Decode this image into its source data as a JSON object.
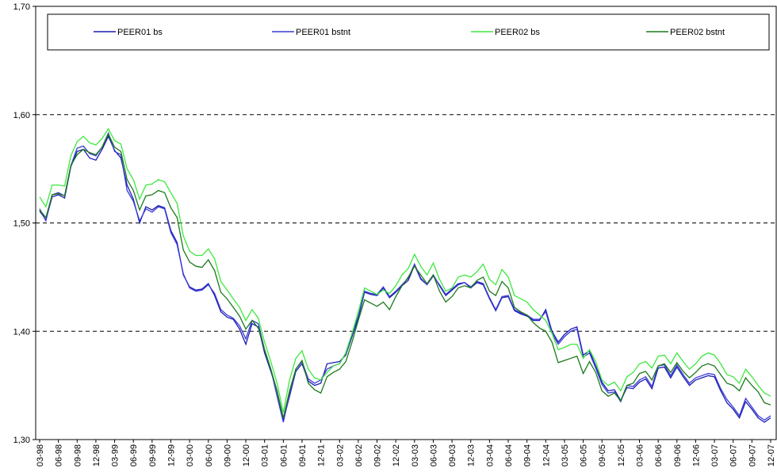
{
  "chart_data": {
    "type": "line",
    "categories": [
      "03-98",
      null,
      null,
      "06-98",
      null,
      null,
      "09-98",
      null,
      null,
      "12-98",
      null,
      null,
      "03-99",
      null,
      null,
      "06-99",
      null,
      null,
      "09-99",
      null,
      null,
      "12-99",
      null,
      null,
      "03-00",
      null,
      null,
      "06-00",
      null,
      null,
      "09-00",
      null,
      null,
      "12-00",
      null,
      null,
      "03-01",
      null,
      null,
      "06-01",
      null,
      null,
      "09-01",
      null,
      null,
      "12-01",
      null,
      null,
      "03-02",
      null,
      null,
      "06-02",
      null,
      null,
      "09-02",
      null,
      null,
      "12-02",
      null,
      null,
      "03-03",
      null,
      null,
      "06-03",
      null,
      null,
      "09-03",
      null,
      null,
      "12-03",
      null,
      null,
      "03-04",
      null,
      null,
      "06-04",
      null,
      null,
      "09-04",
      null,
      null,
      "12-04",
      null,
      null,
      "03-05",
      null,
      null,
      "06-05",
      null,
      null,
      "09-05",
      null,
      null,
      "12-05",
      null,
      null,
      "03-06",
      null,
      null,
      "06-06",
      null,
      null,
      "09-06",
      null,
      null,
      "12-06",
      null,
      null,
      "03-07",
      null,
      null,
      "06-07",
      null,
      null,
      "09-07",
      null,
      null,
      "12-07"
    ],
    "series": [
      {
        "name": "PEER01 bs",
        "color": "#1c1cb4",
        "values": [
          1.511,
          1.503,
          1.524,
          1.526,
          1.523,
          1.552,
          1.566,
          1.568,
          1.56,
          1.558,
          1.568,
          1.58,
          1.567,
          1.56,
          1.535,
          1.522,
          1.5,
          1.515,
          1.512,
          1.516,
          1.514,
          1.493,
          1.482,
          1.452,
          1.441,
          1.438,
          1.439,
          1.444,
          1.433,
          1.418,
          1.413,
          1.411,
          1.402,
          1.388,
          1.407,
          1.404,
          1.38,
          1.363,
          1.345,
          1.318,
          1.34,
          1.363,
          1.37,
          1.354,
          1.35,
          1.352,
          1.37,
          1.371,
          1.372,
          1.378,
          1.395,
          1.412,
          1.436,
          1.434,
          1.433,
          1.44,
          1.431,
          1.436,
          1.442,
          1.447,
          1.461,
          1.448,
          1.443,
          1.452,
          1.442,
          1.433,
          1.438,
          1.443,
          1.445,
          1.44,
          1.445,
          1.443,
          1.43,
          1.419,
          1.431,
          1.432,
          1.419,
          1.416,
          1.414,
          1.41,
          1.41,
          1.42,
          1.4,
          1.39,
          1.397,
          1.402,
          1.404,
          1.378,
          1.382,
          1.368,
          1.353,
          1.345,
          1.346,
          1.336,
          1.348,
          1.347,
          1.353,
          1.356,
          1.347,
          1.366,
          1.367,
          1.357,
          1.367,
          1.358,
          1.35,
          1.355,
          1.357,
          1.359,
          1.358,
          1.345,
          1.334,
          1.328,
          1.32,
          1.335,
          1.328,
          1.32,
          1.316,
          1.32
        ]
      },
      {
        "name": "PEER01 bstnt",
        "color": "#3a3ad6",
        "values": [
          1.513,
          1.502,
          1.526,
          1.528,
          1.525,
          1.553,
          1.569,
          1.571,
          1.564,
          1.562,
          1.57,
          1.583,
          1.566,
          1.563,
          1.53,
          1.52,
          1.502,
          1.513,
          1.51,
          1.515,
          1.513,
          1.491,
          1.48,
          1.453,
          1.44,
          1.437,
          1.438,
          1.443,
          1.435,
          1.42,
          1.415,
          1.412,
          1.405,
          1.393,
          1.41,
          1.407,
          1.383,
          1.365,
          1.34,
          1.316,
          1.342,
          1.365,
          1.372,
          1.356,
          1.352,
          1.355,
          1.365,
          1.368,
          1.37,
          1.38,
          1.398,
          1.414,
          1.437,
          1.435,
          1.434,
          1.441,
          1.432,
          1.437,
          1.443,
          1.449,
          1.462,
          1.449,
          1.443,
          1.451,
          1.443,
          1.434,
          1.439,
          1.444,
          1.445,
          1.441,
          1.446,
          1.444,
          1.431,
          1.42,
          1.432,
          1.433,
          1.42,
          1.417,
          1.415,
          1.411,
          1.411,
          1.418,
          1.398,
          1.388,
          1.395,
          1.4,
          1.402,
          1.376,
          1.38,
          1.366,
          1.351,
          1.343,
          1.344,
          1.335,
          1.35,
          1.349,
          1.355,
          1.358,
          1.349,
          1.368,
          1.369,
          1.359,
          1.369,
          1.36,
          1.352,
          1.357,
          1.359,
          1.361,
          1.36,
          1.347,
          1.337,
          1.33,
          1.322,
          1.338,
          1.33,
          1.322,
          1.318,
          1.322
        ]
      },
      {
        "name": "PEER02 bs",
        "color": "#3ee83e",
        "values": [
          1.524,
          1.515,
          1.535,
          1.535,
          1.534,
          1.562,
          1.575,
          1.58,
          1.574,
          1.572,
          1.578,
          1.587,
          1.576,
          1.573,
          1.55,
          1.54,
          1.522,
          1.535,
          1.536,
          1.54,
          1.538,
          1.528,
          1.518,
          1.488,
          1.474,
          1.47,
          1.47,
          1.476,
          1.467,
          1.446,
          1.438,
          1.43,
          1.422,
          1.41,
          1.42,
          1.412,
          1.39,
          1.372,
          1.352,
          1.325,
          1.355,
          1.375,
          1.382,
          1.365,
          1.357,
          1.355,
          1.362,
          1.368,
          1.37,
          1.38,
          1.398,
          1.418,
          1.44,
          1.437,
          1.434,
          1.438,
          1.435,
          1.442,
          1.452,
          1.458,
          1.471,
          1.46,
          1.452,
          1.463,
          1.448,
          1.437,
          1.44,
          1.45,
          1.452,
          1.45,
          1.455,
          1.462,
          1.448,
          1.443,
          1.457,
          1.45,
          1.433,
          1.43,
          1.427,
          1.42,
          1.415,
          1.41,
          1.398,
          1.383,
          1.385,
          1.388,
          1.388,
          1.375,
          1.383,
          1.372,
          1.355,
          1.35,
          1.353,
          1.345,
          1.358,
          1.362,
          1.37,
          1.372,
          1.366,
          1.377,
          1.378,
          1.37,
          1.38,
          1.372,
          1.365,
          1.37,
          1.377,
          1.38,
          1.378,
          1.37,
          1.36,
          1.358,
          1.352,
          1.365,
          1.358,
          1.35,
          1.343,
          1.34
        ]
      },
      {
        "name": "PEER02 bstnt",
        "color": "#1a7a1a",
        "values": [
          1.512,
          1.505,
          1.526,
          1.527,
          1.525,
          1.553,
          1.563,
          1.568,
          1.565,
          1.563,
          1.57,
          1.582,
          1.57,
          1.566,
          1.54,
          1.53,
          1.512,
          1.525,
          1.526,
          1.53,
          1.528,
          1.514,
          1.505,
          1.475,
          1.464,
          1.46,
          1.459,
          1.466,
          1.456,
          1.436,
          1.43,
          1.422,
          1.414,
          1.402,
          1.41,
          1.403,
          1.383,
          1.365,
          1.345,
          1.32,
          1.345,
          1.365,
          1.373,
          1.352,
          1.346,
          1.343,
          1.358,
          1.362,
          1.365,
          1.372,
          1.39,
          1.41,
          1.429,
          1.426,
          1.423,
          1.427,
          1.42,
          1.432,
          1.442,
          1.45,
          1.46,
          1.452,
          1.444,
          1.452,
          1.437,
          1.427,
          1.432,
          1.44,
          1.442,
          1.44,
          1.447,
          1.45,
          1.437,
          1.433,
          1.446,
          1.44,
          1.422,
          1.418,
          1.415,
          1.408,
          1.403,
          1.4,
          1.39,
          1.371,
          1.373,
          1.375,
          1.377,
          1.361,
          1.372,
          1.362,
          1.345,
          1.34,
          1.343,
          1.336,
          1.35,
          1.352,
          1.361,
          1.363,
          1.355,
          1.368,
          1.37,
          1.362,
          1.371,
          1.363,
          1.357,
          1.362,
          1.368,
          1.37,
          1.368,
          1.36,
          1.352,
          1.35,
          1.345,
          1.357,
          1.35,
          1.344,
          1.334,
          1.332
        ]
      }
    ],
    "ylim": [
      1.3,
      1.7
    ],
    "yticks": [
      {
        "value": 1.3,
        "label": "1,30"
      },
      {
        "value": 1.4,
        "label": "1,40"
      },
      {
        "value": 1.5,
        "label": "1,50"
      },
      {
        "value": 1.6,
        "label": "1,60"
      },
      {
        "value": 1.7,
        "label": "1,70"
      }
    ],
    "grid": true,
    "legend": "top"
  }
}
